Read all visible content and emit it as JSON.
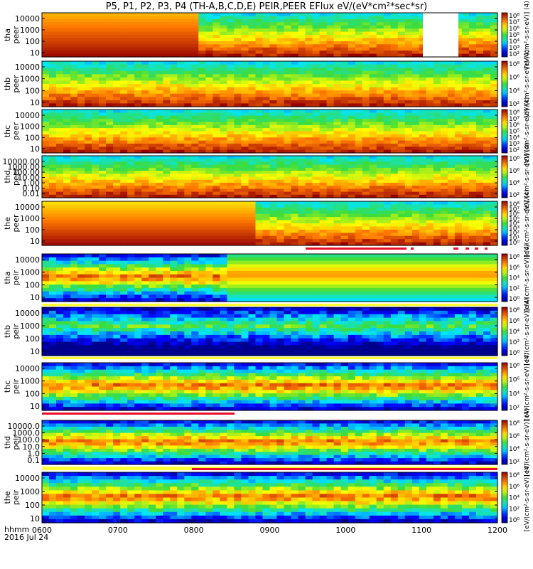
{
  "title": "P5, P1, P2, P3, P4 (TH-A,B,C,D,E) PEIR,PEER EFlux eV/(eV*cm²*sec*sr)",
  "footer": {
    "label": "hhmm",
    "date": "2016 Jul 24"
  },
  "colors": {
    "frame": "#000000",
    "flag_red": "#e8102a",
    "flag_yellow": "#ffff33"
  },
  "chart_data": {
    "type": "heatmap",
    "x_ticks": [
      "0600",
      "0700",
      "0800",
      "0900",
      "1000",
      "1100",
      "1200"
    ],
    "panels": [
      {
        "id": "tha-peer",
        "ylabel": "tha\npeer",
        "yticks": [
          "10000",
          "1000",
          "100",
          "10"
        ],
        "colorbar_ticks": [
          "10⁸",
          "10⁷",
          "10⁶",
          "10⁵",
          "10⁴",
          "10³",
          "10²"
        ],
        "colorbar_label": "[eV/(cm²-s-sr-eV)] (4)"
      },
      {
        "id": "thb-peer",
        "ylabel": "thb\npeer",
        "yticks": [
          "10000",
          "1000",
          "100",
          "10"
        ],
        "colorbar_ticks": [
          "10⁸",
          "10⁶",
          "10⁴",
          "10²"
        ],
        "colorbar_label": "[eV/(cm²-s-sr-eV)] (4)"
      },
      {
        "id": "thc-peer",
        "ylabel": "thc\npeer",
        "yticks": [
          "10000",
          "1000",
          "100",
          "10"
        ],
        "colorbar_ticks": [
          "10⁸",
          "10⁷",
          "10⁶",
          "10⁵",
          "10⁴",
          "10³",
          "10²"
        ],
        "colorbar_label": "[eV/(cm²-s-sr-eV)] (4)"
      },
      {
        "id": "thd-peer",
        "ylabel": "thd\npeer",
        "yticks": [
          "10000.00",
          "1000.00",
          "100.00",
          "10.00",
          "1.00",
          "0.10",
          "0.01"
        ],
        "colorbar_ticks": [
          "10⁸",
          "10⁶",
          "10⁴",
          "10²"
        ],
        "colorbar_label": "[eV/(cm²-s-sr-eV)] (4)"
      },
      {
        "id": "the-peer",
        "ylabel": "the\npeer",
        "yticks": [
          "10000",
          "1000",
          "100",
          "10"
        ],
        "colorbar_ticks": [
          "10⁸",
          "10⁷",
          "10⁶",
          "10⁵",
          "10⁴",
          "10³",
          "10²",
          "10¹",
          "10⁰"
        ],
        "colorbar_label": "[eV/(cm²-s-sr-eV)] (4)"
      },
      {
        "id": "tha-peir",
        "ylabel": "tha\npeir",
        "yticks": [
          "10000",
          "1000",
          "100",
          "10"
        ],
        "colorbar_ticks": [
          "10⁸",
          "10⁶",
          "10⁴",
          "10²",
          "10⁰"
        ],
        "colorbar_label": "[eV/(cm²-s-sr-eV)] (4)"
      },
      {
        "id": "thb-peir",
        "ylabel": "thb\npeir",
        "yticks": [
          "10000",
          "1000",
          "100",
          "10"
        ],
        "colorbar_ticks": [
          "10⁸",
          "10⁶",
          "10⁴",
          "10²",
          "10⁰"
        ],
        "colorbar_label": "[eV/(cm²-s-sr-eV)] (4)"
      },
      {
        "id": "thc-peir",
        "ylabel": "thc\npeir",
        "yticks": [
          "10000",
          "1000",
          "100",
          "10"
        ],
        "colorbar_ticks": [
          "10⁸",
          "10⁶",
          "10⁴",
          "10²"
        ],
        "colorbar_label": "[eV/(cm²-s-sr-eV)] (4)"
      },
      {
        "id": "thd-peir",
        "ylabel": "thd\npeir",
        "yticks": [
          "10000.0",
          "1000.0",
          "100.0",
          "10.0",
          "1.0",
          "0.1"
        ],
        "colorbar_ticks": [
          "10⁸",
          "10⁶",
          "10⁴",
          "10²"
        ],
        "colorbar_label": "[eV/(cm²-s-sr-eV)] (4)"
      },
      {
        "id": "the-peir",
        "ylabel": "the\npeir",
        "yticks": [
          "10000",
          "1000",
          "100",
          "10"
        ],
        "colorbar_ticks": [
          "10⁸",
          "10⁶",
          "10⁴",
          "10²",
          "10⁰"
        ],
        "colorbar_label": "[eV/(cm²-s-sr-eV)] (4)"
      }
    ]
  }
}
